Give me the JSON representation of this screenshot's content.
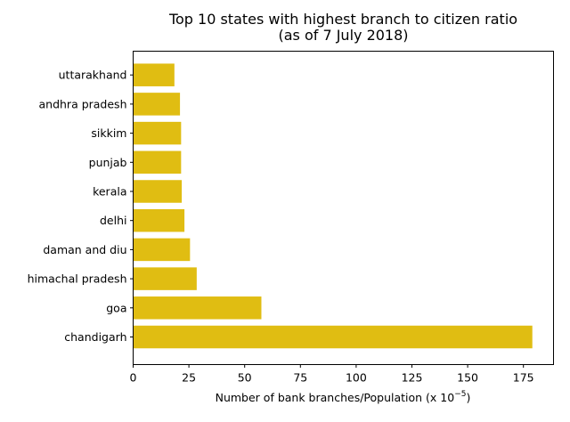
{
  "chart_data": {
    "type": "bar",
    "orientation": "horizontal",
    "title_line1": "Top 10 states with highest branch to citizen ratio",
    "title_line2": "(as of 7 July 2018)",
    "xlabel_main": "Number of bank branches/Population (x 10",
    "xlabel_exp": "−5",
    "xlabel_close": ")",
    "ylabel": "",
    "categories": [
      "chandigarh",
      "goa",
      "himachal pradesh",
      "daman and diu",
      "delhi",
      "kerala",
      "punjab",
      "sikkim",
      "andhra pradesh",
      "uttarakhand"
    ],
    "values": [
      179,
      57.5,
      28.5,
      25.5,
      23,
      21.8,
      21.5,
      21.5,
      21,
      18.5
    ],
    "xlim": [
      0,
      188.5
    ],
    "xticks": [
      0,
      25,
      50,
      75,
      100,
      125,
      150,
      175
    ],
    "bar_color": "#e0bd12",
    "grid": false
  }
}
